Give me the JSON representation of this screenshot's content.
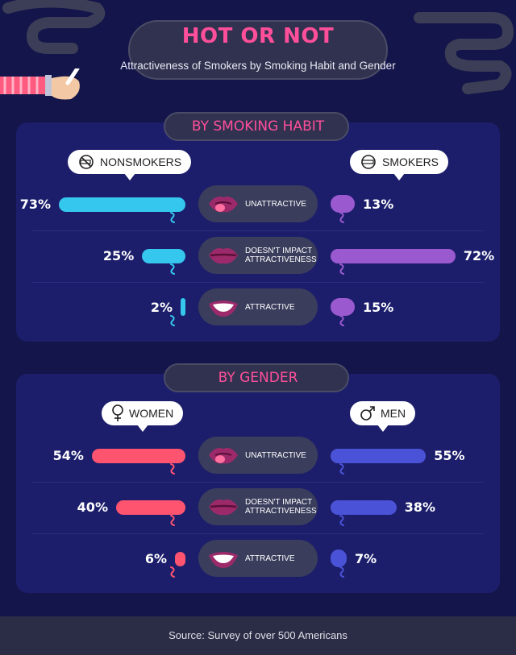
{
  "header": {
    "title": "HOT OR NOT",
    "subtitle": "Attractiveness of Smokers by Smoking Habit and Gender"
  },
  "colors": {
    "background": "#14154a",
    "panel": "#1c1e6b",
    "title": "#ff4f9a",
    "nonsmokers": "#35c7ee",
    "smokers": "#9b59d0",
    "women": "#ff5470",
    "men": "#4a52d8",
    "pill": "#3a3d5c",
    "footer": "#2b2c45"
  },
  "footer": {
    "source": "Source: Survey of over 500 Americans"
  },
  "chart_data": [
    {
      "type": "bar",
      "title": "BY SMOKING HABIT",
      "categories": [
        "UNATTRACTIVE",
        "DOESN'T IMPACT ATTRACTIVENESS",
        "ATTRACTIVE"
      ],
      "series": [
        {
          "name": "NONSMOKERS",
          "values": [
            73,
            25,
            2
          ],
          "labels": [
            "73%",
            "25%",
            "2%"
          ],
          "color": "#35c7ee",
          "icon": "no-smoking-icon"
        },
        {
          "name": "SMOKERS",
          "values": [
            13,
            72,
            15
          ],
          "labels": [
            "13%",
            "72%",
            "15%"
          ],
          "color": "#9b59d0",
          "icon": "cigarette-icon"
        }
      ],
      "ylim": [
        0,
        100
      ]
    },
    {
      "type": "bar",
      "title": "BY GENDER",
      "categories": [
        "UNATTRACTIVE",
        "DOESN'T IMPACT ATTRACTIVENESS",
        "ATTRACTIVE"
      ],
      "series": [
        {
          "name": "WOMEN",
          "values": [
            54,
            40,
            6
          ],
          "labels": [
            "54%",
            "40%",
            "6%"
          ],
          "color": "#ff5470",
          "icon": "female-symbol-icon"
        },
        {
          "name": "MEN",
          "values": [
            55,
            38,
            7
          ],
          "labels": [
            "55%",
            "38%",
            "7%"
          ],
          "color": "#4a52d8",
          "icon": "male-symbol-icon"
        }
      ],
      "ylim": [
        0,
        100
      ]
    }
  ],
  "labels": {
    "unattractive": "UNATTRACTIVE",
    "doesnt_impact_1": "DOESN'T IMPACT",
    "doesnt_impact_2": "ATTRACTIVENESS",
    "attractive": "ATTRACTIVE"
  }
}
